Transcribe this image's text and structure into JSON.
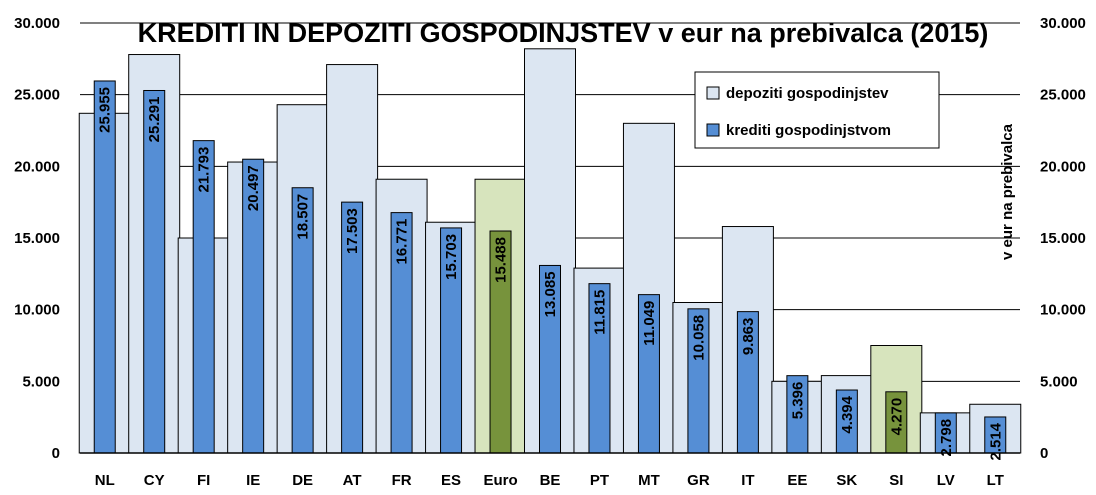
{
  "chart_data": {
    "type": "bar",
    "title": "KREDITI IN DEPOZITI GOSPODINJSTEV v eur na prebivalca (2015)",
    "ylabel_right": "v eur na prebivalca",
    "ylim": [
      0,
      30000
    ],
    "yticks": [
      "0",
      "5.000",
      "10.000",
      "15.000",
      "20.000",
      "25.000",
      "30.000"
    ],
    "grid": true,
    "legend_position": "top-right",
    "categories": [
      "NL",
      "CY",
      "FI",
      "IE",
      "DE",
      "AT",
      "FR",
      "ES",
      "Euro",
      "BE",
      "PT",
      "MT",
      "GR",
      "IT",
      "EE",
      "SK",
      "SI",
      "LV",
      "LT"
    ],
    "highlight_categories": [
      "Euro",
      "SI"
    ],
    "series": [
      {
        "name": "depoziti gospodinjstev",
        "values": [
          23700,
          27800,
          15000,
          20300,
          24300,
          27100,
          19100,
          16100,
          19100,
          28200,
          12900,
          23000,
          10500,
          15800,
          5000,
          5400,
          7500,
          2800,
          3400
        ]
      },
      {
        "name": "krediti gospodinjstvom",
        "values": [
          25955,
          25291,
          21793,
          20497,
          18507,
          17503,
          16771,
          15703,
          15488,
          13085,
          11815,
          11049,
          10058,
          9863,
          5396,
          4394,
          4270,
          2798,
          2514
        ],
        "labels": [
          "25.955",
          "25.291",
          "21.793",
          "20.497",
          "18.507",
          "17.503",
          "16.771",
          "15.703",
          "15.488",
          "13.085",
          "11.815",
          "11.049",
          "10.058",
          "9.863",
          "5.396",
          "4.394",
          "4.270",
          "2.798",
          "2.514"
        ]
      }
    ],
    "colors": {
      "deposit_fill": "#dce6f2",
      "deposit_highlight_fill": "#d7e4bd",
      "credit_fill": "#558ed5",
      "credit_highlight_fill": "#77933c",
      "bar_stroke": "#000000"
    }
  }
}
